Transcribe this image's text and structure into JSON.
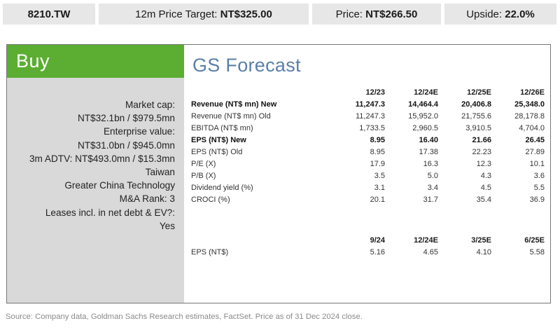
{
  "header": {
    "ticker": "8210.TW",
    "price_target_label": "12m Price Target:",
    "price_target_value": "NT$325.00",
    "price_label": "Price:",
    "price_value": "NT$266.50",
    "upside_label": "Upside:",
    "upside_value": "22.0%"
  },
  "rating": "Buy",
  "key_facts": [
    "Market cap:",
    "NT$32.1bn / $979.5mn",
    "Enterprise value:",
    "NT$31.0bn / $945.0mn",
    "3m ADTV: NT$493.0mn / $15.3mn",
    "Taiwan",
    "Greater China Technology",
    "M&A Rank: 3",
    "Leases incl. in net debt & EV?:",
    "Yes"
  ],
  "forecast": {
    "title": "GS Forecast",
    "annual": {
      "columns": [
        "12/23",
        "12/24E",
        "12/25E",
        "12/26E"
      ],
      "rows": [
        {
          "label": "Revenue (NT$ mn) New",
          "values": [
            "11,247.3",
            "14,464.4",
            "20,406.8",
            "25,348.0"
          ],
          "bold": true
        },
        {
          "label": "Revenue (NT$ mn) Old",
          "values": [
            "11,247.3",
            "15,952.0",
            "21,755.6",
            "28,178.8"
          ],
          "bold": false
        },
        {
          "label": "EBITDA (NT$ mn)",
          "values": [
            "1,733.5",
            "2,960.5",
            "3,910.5",
            "4,704.0"
          ],
          "bold": false
        },
        {
          "label": "EPS (NT$) New",
          "values": [
            "8.95",
            "16.40",
            "21.66",
            "26.45"
          ],
          "bold": true
        },
        {
          "label": "EPS (NT$) Old",
          "values": [
            "8.95",
            "17.38",
            "22.23",
            "27.89"
          ],
          "bold": false
        },
        {
          "label": "P/E (X)",
          "values": [
            "17.9",
            "16.3",
            "12.3",
            "10.1"
          ],
          "bold": false
        },
        {
          "label": "P/B (X)",
          "values": [
            "3.5",
            "5.0",
            "4.3",
            "3.6"
          ],
          "bold": false
        },
        {
          "label": "Dividend yield (%)",
          "values": [
            "3.1",
            "3.4",
            "4.5",
            "5.5"
          ],
          "bold": false
        },
        {
          "label": "CROCI (%)",
          "values": [
            "20.1",
            "31.7",
            "35.4",
            "36.9"
          ],
          "bold": false
        }
      ]
    },
    "quarterly": {
      "columns": [
        "9/24",
        "12/24E",
        "3/25E",
        "6/25E"
      ],
      "rows": [
        {
          "label": "EPS (NT$)",
          "values": [
            "5.16",
            "4.65",
            "4.10",
            "5.58"
          ],
          "bold": false
        }
      ]
    }
  },
  "source": "Source: Company data, Goldman Sachs Research estimates, FactSet. Price as of 31 Dec 2024 close."
}
